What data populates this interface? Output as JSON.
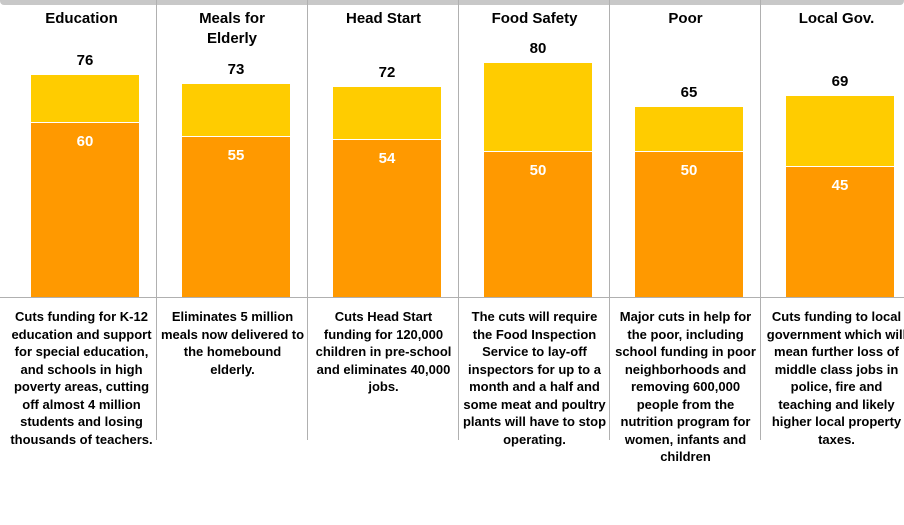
{
  "chart_data": {
    "type": "bar",
    "categories": [
      "Education",
      "Meals for Elderly",
      "Head Start",
      "Food Safety",
      "Poor",
      "Local Gov."
    ],
    "series": [
      {
        "color": "#ffcc00",
        "values": [
          76,
          73,
          72,
          80,
          65,
          69
        ]
      },
      {
        "color": "#ff9900",
        "values": [
          60,
          55,
          54,
          50,
          50,
          45
        ]
      }
    ],
    "descriptions": [
      "Cuts funding for K-12 education and support for special education, and schools in high poverty areas, cutting off almost 4 million students and losing thousands of teachers.",
      "Eliminates 5 million meals now delivered to the homebound elderly.",
      "Cuts Head Start funding for 120,000 children in pre-school and eliminates 40,000 jobs.",
      "The cuts will require the Food Inspection Service to lay-off inspectors for up to a month and a half and some meat and poultry plants will have to stop operating.",
      "Major cuts in help for the poor, including school funding in poor neighborhoods and removing 600,000 people from the nutrition program for women, infants and children",
      "Cuts funding to local government which will mean further loss of middle class jobs in police, fire and teaching and likely higher local property taxes."
    ]
  }
}
